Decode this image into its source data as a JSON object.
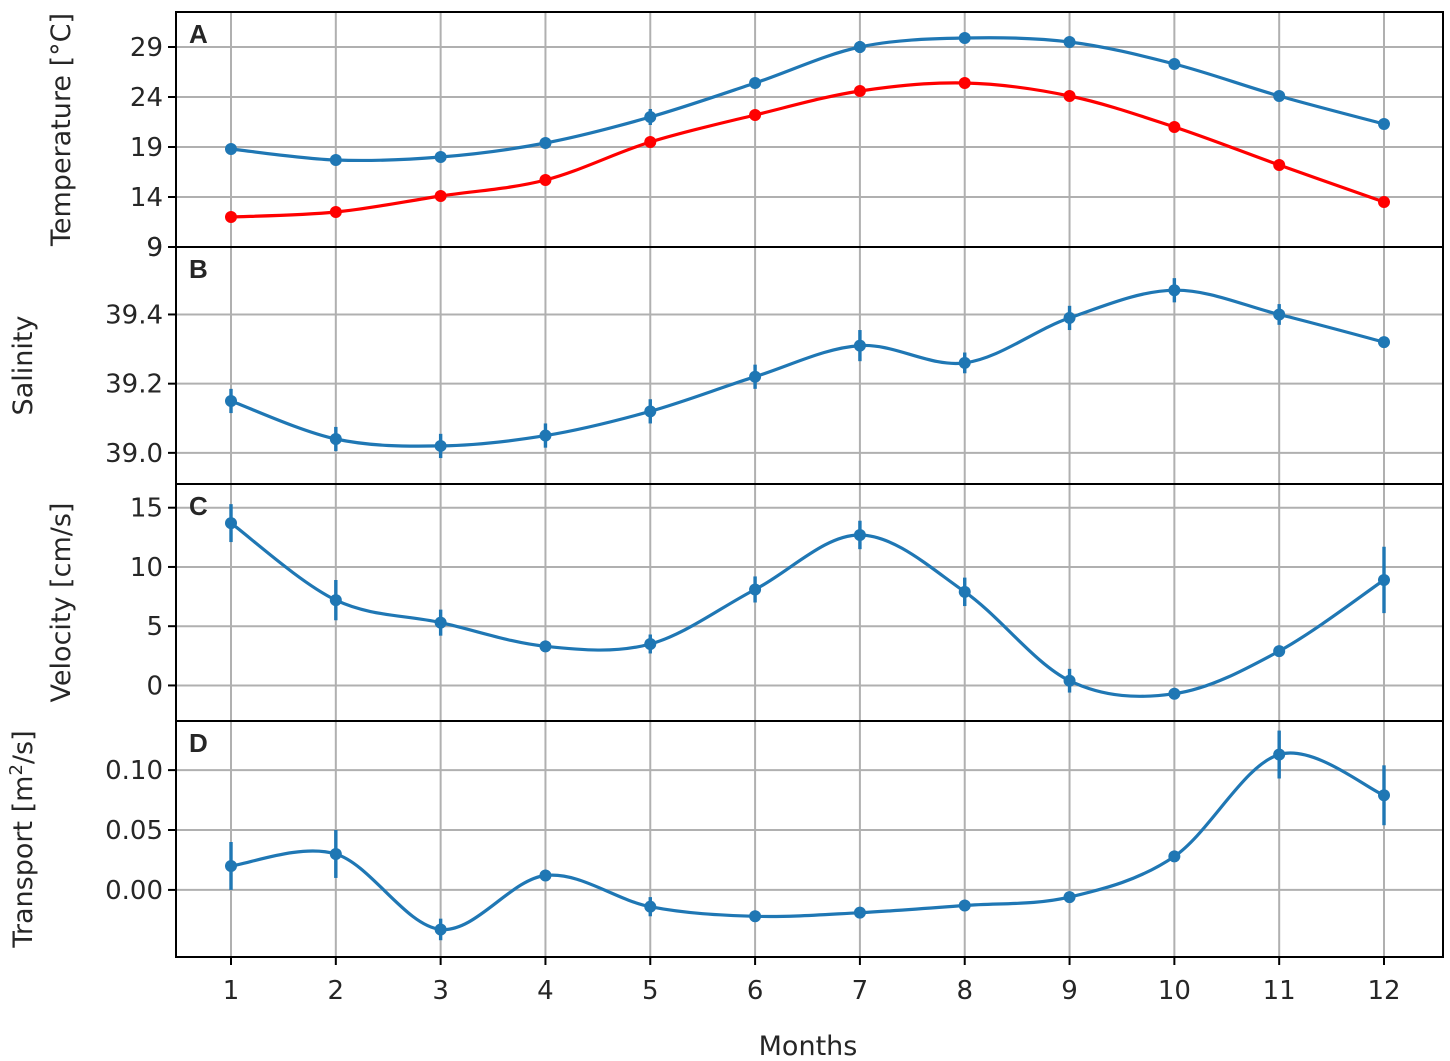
{
  "chart_data": [
    {
      "panel": "A",
      "type": "line",
      "ylabel": "Temperature [°C]",
      "ylim": [
        9,
        32.5
      ],
      "yticks": [
        9,
        14,
        19,
        24,
        29
      ],
      "grid": true,
      "x": [
        1,
        2,
        3,
        4,
        5,
        6,
        7,
        8,
        9,
        10,
        11,
        12
      ],
      "series": [
        {
          "color": "#1f77b4",
          "values": [
            18.8,
            17.7,
            18.0,
            19.4,
            22.0,
            25.4,
            29.0,
            29.9,
            29.5,
            27.3,
            24.1,
            21.3
          ],
          "errors": [
            0,
            0,
            0,
            0,
            0.8,
            0,
            0.6,
            0,
            0,
            0,
            0,
            0
          ]
        },
        {
          "color": "#ff0000",
          "values": [
            12.0,
            12.5,
            14.1,
            15.7,
            19.5,
            22.2,
            24.6,
            25.4,
            24.1,
            21.0,
            17.2,
            13.5
          ],
          "errors": [
            0,
            0,
            0,
            0,
            0,
            0,
            0,
            0,
            0,
            0,
            0,
            0
          ]
        }
      ]
    },
    {
      "panel": "B",
      "type": "line",
      "ylabel": "Salinity",
      "ylim": [
        38.91,
        39.595
      ],
      "yticks": [
        39.0,
        39.2,
        39.4
      ],
      "tick_format": "39.0",
      "grid": true,
      "x": [
        1,
        2,
        3,
        4,
        5,
        6,
        7,
        8,
        9,
        10,
        11,
        12
      ],
      "series": [
        {
          "color": "#1f77b4",
          "values": [
            39.15,
            39.04,
            39.02,
            39.05,
            39.12,
            39.22,
            39.31,
            39.26,
            39.39,
            39.47,
            39.4,
            39.32
          ],
          "errors": [
            0.035,
            0.035,
            0.035,
            0.035,
            0.035,
            0.035,
            0.045,
            0.03,
            0.035,
            0.035,
            0.03,
            0
          ]
        }
      ]
    },
    {
      "panel": "C",
      "type": "line",
      "ylabel": "Velocity [cm/s]",
      "ylim": [
        -3.0,
        17.0
      ],
      "yticks": [
        0,
        5,
        10,
        15
      ],
      "grid": true,
      "x": [
        1,
        2,
        3,
        4,
        5,
        6,
        7,
        8,
        9,
        10,
        11,
        12
      ],
      "series": [
        {
          "color": "#1f77b4",
          "values": [
            13.7,
            7.2,
            5.3,
            3.3,
            3.5,
            8.1,
            12.7,
            7.9,
            0.4,
            -0.7,
            2.9,
            8.9
          ],
          "errors": [
            1.6,
            1.7,
            1.1,
            0,
            0.8,
            1.1,
            1.2,
            1.2,
            1.0,
            0,
            0,
            2.8
          ]
        }
      ]
    },
    {
      "panel": "D",
      "type": "line",
      "ylabel": "Transport [m²/s]",
      "ylim": [
        -0.056,
        0.141
      ],
      "yticks": [
        0.0,
        0.05,
        0.1
      ],
      "tick_format": "0.00",
      "grid": true,
      "x": [
        1,
        2,
        3,
        4,
        5,
        6,
        7,
        8,
        9,
        10,
        11,
        12
      ],
      "series": [
        {
          "color": "#1f77b4",
          "values": [
            0.02,
            0.03,
            -0.033,
            0.012,
            -0.014,
            -0.022,
            -0.019,
            -0.013,
            -0.006,
            0.028,
            0.113,
            0.079
          ],
          "errors": [
            0.02,
            0.02,
            0.009,
            0,
            0.008,
            0,
            0,
            0,
            0,
            0,
            0.02,
            0.025
          ]
        }
      ]
    }
  ],
  "xlabel": "Months",
  "xticks": [
    1,
    2,
    3,
    4,
    5,
    6,
    7,
    8,
    9,
    10,
    11,
    12
  ]
}
